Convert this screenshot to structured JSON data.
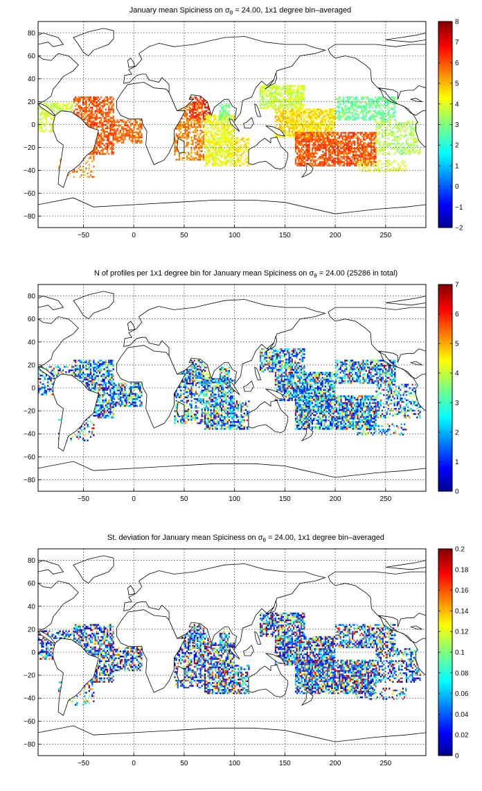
{
  "panels": [
    {
      "title_pre": "January mean Spiciness on ",
      "title_sym": "σ",
      "title_sub": "θ",
      "title_post": " = 24.00, 1x1 degree bin–averaged",
      "colorbar": {
        "min": -2,
        "max": 8,
        "ticks": [
          "8",
          "7",
          "6",
          "5",
          "4",
          "3",
          "2",
          "1",
          "0",
          "−1",
          "−2"
        ]
      }
    },
    {
      "title_pre": "N of profiles per 1x1 degree bin for January mean Spiciness on ",
      "title_sym": "σ",
      "title_sub": "θ",
      "title_post": " = 24.00 (25286 in total)",
      "colorbar": {
        "min": 0,
        "max": 7,
        "ticks": [
          "7",
          "6",
          "5",
          "4",
          "3",
          "2",
          "1",
          "0"
        ]
      }
    },
    {
      "title_pre": "St. deviation for January mean Spiciness on ",
      "title_sym": "σ",
      "title_sub": "θ",
      "title_post": " = 24.00, 1x1 degree bin–averaged",
      "colorbar": {
        "min": 0,
        "max": 0.2,
        "ticks": [
          "0.2",
          "0.18",
          "0.16",
          "0.14",
          "0.12",
          "0.1",
          "0.08",
          "0.06",
          "0.04",
          "0.02",
          "0"
        ]
      }
    }
  ],
  "axes": {
    "x_ticks": [
      "−50",
      "0",
      "50",
      "100",
      "150",
      "200",
      "250"
    ],
    "y_ticks": [
      "80",
      "60",
      "40",
      "20",
      "0",
      "−20",
      "−40",
      "−60",
      "−80"
    ],
    "x_range": [
      -95,
      290
    ],
    "y_range": [
      -90,
      90
    ],
    "grid": "dotted"
  },
  "colors": {
    "land_outline": "#000000",
    "jet_low": "#00008f",
    "jet_high": "#800000"
  }
}
